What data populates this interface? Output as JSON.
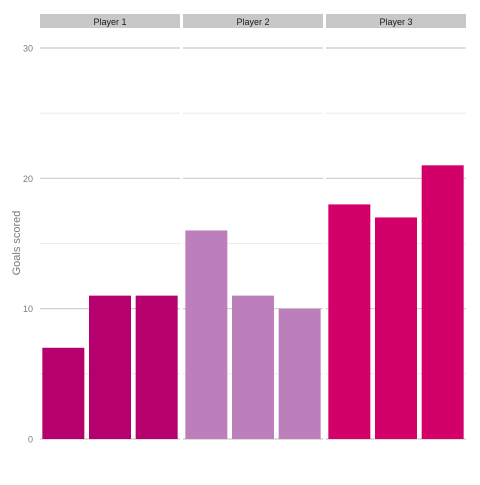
{
  "chart_data": {
    "type": "bar",
    "facets": [
      "Player 1",
      "Player 2",
      "Player 3"
    ],
    "series": [
      {
        "facet": "Player 1",
        "values": [
          7,
          11,
          11
        ],
        "color": "#b5006e"
      },
      {
        "facet": "Player 2",
        "values": [
          16,
          11,
          10
        ],
        "color": "#bd7fbb"
      },
      {
        "facet": "Player 3",
        "values": [
          18,
          17,
          21
        ],
        "color": "#d20068"
      }
    ],
    "ylabel": "Goals scored",
    "ylim": [
      0,
      30
    ],
    "y_ticks": [
      0,
      10,
      20,
      30
    ],
    "y_minor_ticks": [
      5,
      15,
      25
    ],
    "grid": true,
    "strip_color": "#c8c8c8",
    "grid_major_color": "#cccccc",
    "grid_minor_color": "#e6e6e6"
  }
}
